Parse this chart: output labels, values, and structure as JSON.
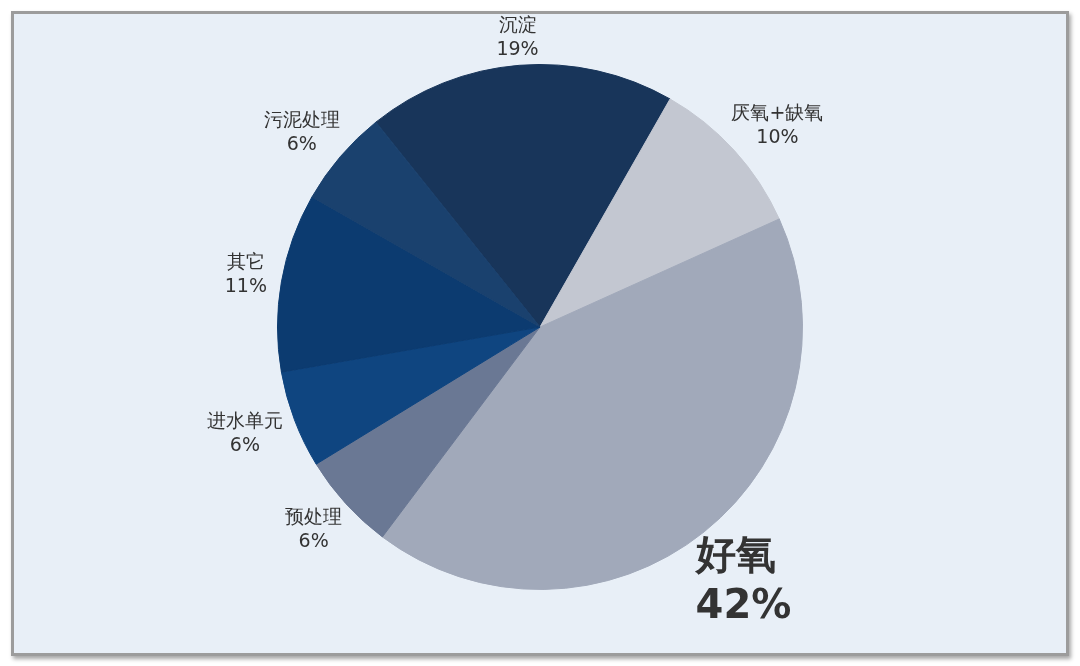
{
  "chart_data": {
    "type": "pie",
    "categories": [
      "沉淀",
      "厌氧+缺氧",
      "好氧",
      "预处理",
      "进水单元",
      "其它",
      "污泥处理"
    ],
    "values": [
      19,
      10,
      42,
      6,
      6,
      11,
      6
    ],
    "value_labels": [
      "19%",
      "10%",
      "42%",
      "6%",
      "6%",
      "11%",
      "6%"
    ],
    "colors": [
      "#18355a",
      "#c3c7d1",
      "#a1a9ba",
      "#6a7894",
      "#0f4580",
      "#0c3b70",
      "#1a416e"
    ]
  }
}
